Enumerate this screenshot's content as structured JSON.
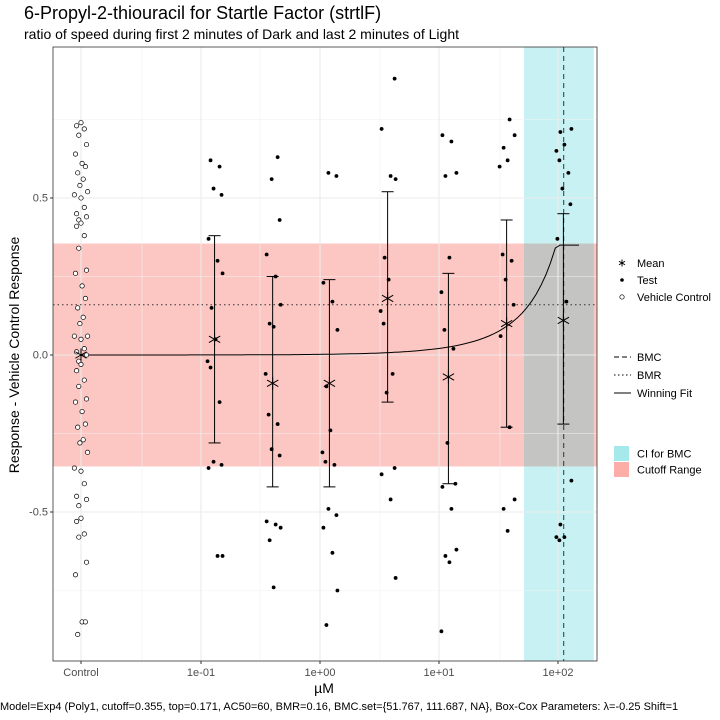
{
  "chart_data": {
    "type": "scatter",
    "title": "6-Propyl-2-thiouracil for Startle Factor (strtlF)",
    "subtitle": "ratio of speed during first 2 minutes of Dark and last 2 minutes of Light",
    "xlabel": "µM",
    "ylabel": "Response - Vehicle Control Response",
    "x_scale": "log",
    "x_ticks": [
      "Control",
      "1e-01",
      "1e+00",
      "1e+01",
      "1e+02"
    ],
    "y_ticks": [
      -0.5,
      0.0,
      0.5
    ],
    "ylim": [
      -0.97,
      0.97
    ],
    "grid": true,
    "legend_position": "right",
    "caption": "Model=Exp4 (Poly1, cutoff=0.355, top=0.171, AC50=60, BMR=0.16, BMC.set={51.767, 111.687, NA}, Box-Cox Parameters: λ=-0.25 Shift=1",
    "cutoff_range": [
      -0.355,
      0.355
    ],
    "bmr": 0.16,
    "bmc": 111.687,
    "bmc_ci": [
      51.767,
      200
    ],
    "colors": {
      "cutoff": "#f8766d",
      "ci": "#00bfc4"
    },
    "legend": {
      "points": [
        "Mean",
        "Test",
        "Vehicle Control"
      ],
      "lines": [
        "BMC",
        "BMR",
        "Winning Fit"
      ],
      "fills": [
        "CI for BMC",
        "Cutoff Range"
      ]
    },
    "means": [
      {
        "x": "Control",
        "mean": 0.0,
        "lower": null,
        "upper": null
      },
      {
        "x": 0.13,
        "mean": 0.05,
        "lower": -0.28,
        "upper": 0.38
      },
      {
        "x": 0.4,
        "mean": -0.09,
        "lower": -0.42,
        "upper": 0.25
      },
      {
        "x": 1.2,
        "mean": -0.09,
        "lower": -0.42,
        "upper": 0.24
      },
      {
        "x": 3.7,
        "mean": 0.18,
        "lower": -0.15,
        "upper": 0.52
      },
      {
        "x": 12,
        "mean": -0.07,
        "lower": -0.41,
        "upper": 0.26
      },
      {
        "x": 37,
        "mean": 0.1,
        "lower": -0.23,
        "upper": 0.43
      },
      {
        "x": 111,
        "mean": 0.11,
        "lower": -0.22,
        "upper": 0.45
      }
    ],
    "test_points": [
      {
        "x": 0.13,
        "y": [
          0.62,
          0.6,
          0.53,
          0.51,
          0.37,
          0.3,
          0.26,
          0.15,
          0.05,
          -0.02,
          -0.04,
          -0.15,
          -0.34,
          -0.35,
          -0.36,
          -0.64,
          -0.64
        ]
      },
      {
        "x": 0.4,
        "y": [
          0.63,
          0.56,
          0.43,
          0.32,
          0.25,
          0.16,
          0.1,
          0.09,
          -0.06,
          -0.19,
          -0.22,
          -0.3,
          -0.32,
          -0.53,
          -0.54,
          -0.55,
          -0.59,
          -0.74
        ]
      },
      {
        "x": 1.2,
        "y": [
          0.58,
          0.57,
          0.23,
          0.17,
          0.08,
          -0.1,
          -0.24,
          -0.31,
          -0.34,
          -0.35,
          -0.49,
          -0.51,
          -0.55,
          -0.63,
          -0.75,
          -0.86
        ]
      },
      {
        "x": 3.7,
        "y": [
          0.88,
          0.72,
          0.57,
          0.56,
          0.31,
          0.24,
          0.14,
          0.1,
          -0.06,
          -0.12,
          -0.36,
          -0.38,
          -0.46,
          -0.71
        ]
      },
      {
        "x": 12,
        "y": [
          0.7,
          0.68,
          0.58,
          0.57,
          0.31,
          0.2,
          0.08,
          0.02,
          -0.28,
          -0.41,
          -0.42,
          -0.49,
          -0.62,
          -0.64,
          -0.66,
          -0.88
        ]
      },
      {
        "x": 37,
        "y": [
          0.75,
          0.7,
          0.66,
          0.62,
          0.6,
          0.32,
          0.3,
          0.24,
          0.16,
          0.06,
          -0.23,
          -0.46,
          -0.49,
          -0.56
        ]
      },
      {
        "x": 111,
        "y": [
          0.72,
          0.71,
          0.67,
          0.65,
          0.62,
          0.58,
          0.53,
          0.48,
          0.37,
          0.17,
          -0.4,
          -0.54,
          -0.58,
          -0.58,
          -0.59
        ]
      }
    ],
    "control_points": [
      0.74,
      0.73,
      0.72,
      0.7,
      0.67,
      0.64,
      0.61,
      0.6,
      0.58,
      0.56,
      0.54,
      0.52,
      0.51,
      0.5,
      0.47,
      0.45,
      0.44,
      0.43,
      0.42,
      0.41,
      0.38,
      0.34,
      0.27,
      0.26,
      0.22,
      0.18,
      0.15,
      0.12,
      0.1,
      0.06,
      0.06,
      0.05,
      0.02,
      0.01,
      0.0,
      -0.02,
      -0.03,
      -0.05,
      -0.08,
      -0.1,
      -0.14,
      -0.15,
      -0.18,
      -0.22,
      -0.23,
      -0.27,
      -0.28,
      -0.31,
      -0.36,
      -0.37,
      -0.41,
      -0.45,
      -0.46,
      -0.48,
      -0.52,
      -0.53,
      -0.57,
      -0.58,
      -0.66,
      -0.7,
      -0.85,
      -0.85,
      -0.89
    ],
    "fit": {
      "model": "Exp4",
      "top": 0.171,
      "ac50": 60
    }
  }
}
